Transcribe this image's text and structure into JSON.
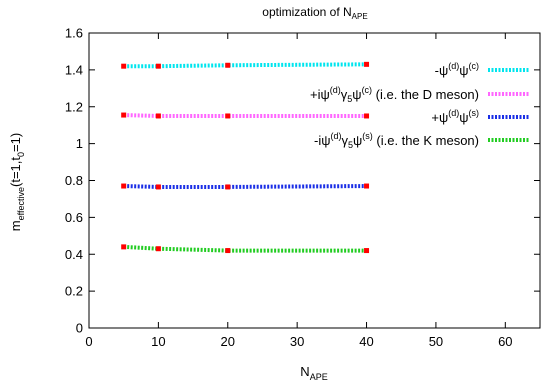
{
  "chart_data": {
    "type": "line",
    "title": "optimization of N",
    "title_sub": "APE",
    "xlabel": "N",
    "xlabel_sub": "APE",
    "ylabel": "m",
    "ylabel_sub": "effective",
    "ylabel_suffix": "(t=1,t",
    "ylabel_sub2": "0",
    "ylabel_end": "=1)",
    "xlim": [
      0,
      65
    ],
    "ylim": [
      0,
      1.6
    ],
    "xticks": [
      "0",
      "10",
      "20",
      "30",
      "40",
      "50",
      "60"
    ],
    "yticks": [
      "0",
      "0.2",
      "0.4",
      "0.6",
      "0.8",
      "1",
      "1.2",
      "1.4",
      "1.6"
    ],
    "grid": false,
    "legend_position": "top-right",
    "marker_color": "#ff0000",
    "series": [
      {
        "legend": {
          "sign": "-",
          "op1": "ψ",
          "sup1": "(d)",
          "gamma": "",
          "op2": "ψ",
          "sup2": "(c)",
          "note": ""
        },
        "color": "#00e5ee",
        "x": [
          5,
          10,
          20,
          40
        ],
        "y": [
          1.42,
          1.42,
          1.425,
          1.43
        ]
      },
      {
        "legend": {
          "sign": "+i",
          "op1": "ψ",
          "sup1": "(d)",
          "gamma": "5",
          "op2": "ψ",
          "sup2": "(c)",
          "note": "(i.e. the D meson)"
        },
        "color": "#ff66ff",
        "x": [
          5,
          10,
          20,
          40
        ],
        "y": [
          1.155,
          1.15,
          1.15,
          1.15
        ]
      },
      {
        "legend": {
          "sign": "+",
          "op1": "ψ",
          "sup1": "(d)",
          "gamma": "",
          "op2": "ψ",
          "sup2": "(s)",
          "note": ""
        },
        "color": "#1a2ee6",
        "x": [
          5,
          10,
          20,
          40
        ],
        "y": [
          0.77,
          0.765,
          0.765,
          0.77
        ]
      },
      {
        "legend": {
          "sign": "-i",
          "op1": "ψ",
          "sup1": "(d)",
          "gamma": "5",
          "op2": "ψ",
          "sup2": "(s)",
          "note": "(i.e. the K meson)"
        },
        "color": "#22cc22",
        "x": [
          5,
          10,
          20,
          40
        ],
        "y": [
          0.44,
          0.43,
          0.42,
          0.42
        ]
      }
    ]
  }
}
